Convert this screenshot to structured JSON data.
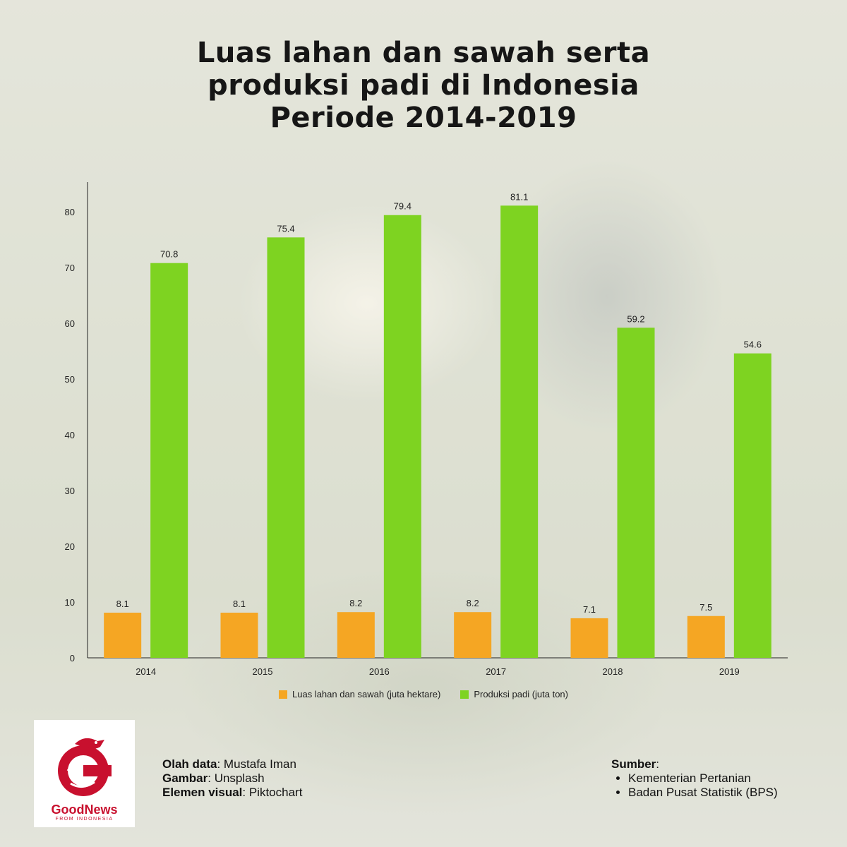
{
  "title_lines": [
    "Luas lahan dan sawah serta",
    "produksi padi di Indonesia",
    "Periode 2014-2019"
  ],
  "colors": {
    "area": "#f5a623",
    "production": "#7ed321",
    "axis": "#222222"
  },
  "chart_data": {
    "type": "bar",
    "categories": [
      "2014",
      "2015",
      "2016",
      "2017",
      "2018",
      "2019"
    ],
    "series": [
      {
        "name": "Luas lahan dan sawah (juta hektare)",
        "values": [
          8.1,
          8.1,
          8.2,
          8.2,
          7.1,
          7.5
        ]
      },
      {
        "name": "Produksi padi (juta ton)",
        "values": [
          70.8,
          75.4,
          79.4,
          81.1,
          59.2,
          54.6
        ]
      }
    ],
    "yticks": [
      0,
      10,
      20,
      30,
      40,
      50,
      60,
      70,
      80
    ],
    "ylim": [
      0,
      85
    ],
    "legend_position": "bottom-center",
    "grid": false
  },
  "logo": {
    "name": "GoodNews",
    "tagline": "FROM INDONESIA"
  },
  "credits": [
    {
      "key": "Olah data",
      "value": ": Mustafa Iman"
    },
    {
      "key": "Gambar",
      "value": ": Unsplash"
    },
    {
      "key": "Elemen visual",
      "value": ": Piktochart"
    }
  ],
  "sources": {
    "label": "Sumber",
    "suffix": ":",
    "items": [
      "Kementerian Pertanian",
      "Badan Pusat Statistik (BPS)"
    ]
  }
}
